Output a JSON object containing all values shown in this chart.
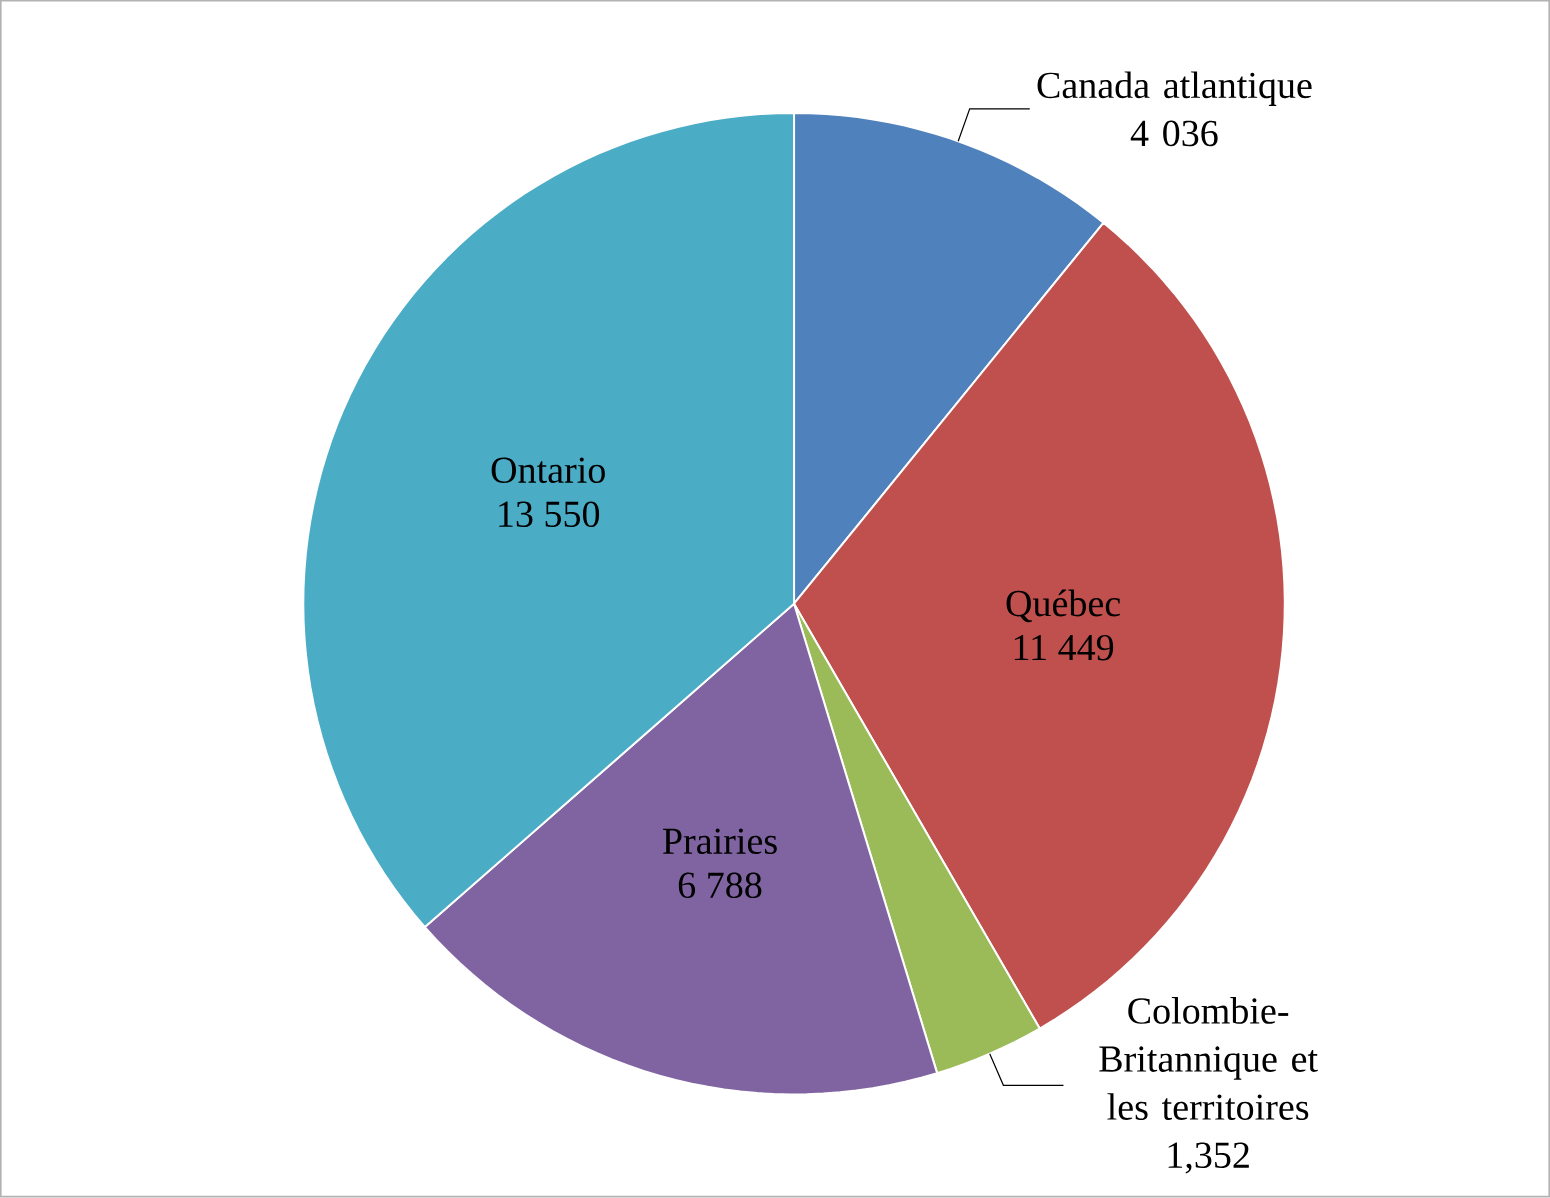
{
  "chart_data": {
    "type": "pie",
    "categories": [
      "Canada atlantique",
      "Québec",
      "Colombie-Britannique et les territoires",
      "Prairies",
      "Ontario"
    ],
    "values": [
      4036,
      11449,
      1352,
      6788,
      13550
    ],
    "value_labels": [
      "4 036",
      "11 449",
      "1,352",
      "6 788",
      "13 550"
    ],
    "colors": [
      "#4f81bd",
      "#c0504d",
      "#9bbb59",
      "#8064a2",
      "#4bacc6"
    ]
  }
}
